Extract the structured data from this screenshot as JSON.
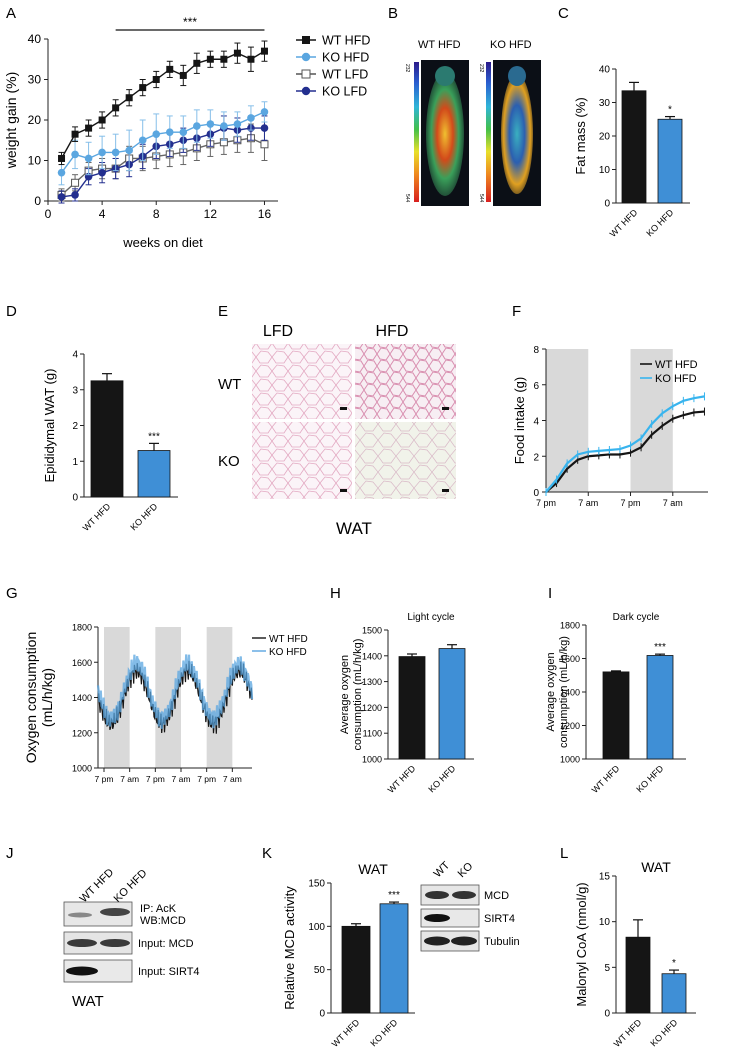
{
  "colors": {
    "black": "#151515",
    "lightblue": "#5aa6e0",
    "navy": "#232f8f",
    "barblue": "#3f8fd6",
    "cyan": "#38b4ee",
    "grey": "#d9d9d9",
    "tissue_pink": "#e7b5cb"
  },
  "panels": {
    "A": "A",
    "B": "B",
    "C": "C",
    "D": "D",
    "E": "E",
    "F": "F",
    "G": "G",
    "H": "H",
    "I": "I",
    "J": "J",
    "K": "K",
    "L": "L"
  },
  "chart_data": [
    {
      "id": "A",
      "type": "line",
      "xlabel": "weeks on diet",
      "ylabel": "weight gain (%)",
      "xticks": [
        0,
        4,
        8,
        12,
        16
      ],
      "yticks": [
        0,
        10,
        20,
        30,
        40
      ],
      "xlim": [
        0,
        17
      ],
      "ylim": [
        0,
        40
      ],
      "significance": "***",
      "x": [
        1,
        2,
        3,
        4,
        5,
        6,
        7,
        8,
        9,
        10,
        11,
        12,
        13,
        14,
        15,
        16
      ],
      "series": [
        {
          "name": "WT HFD",
          "color": "black",
          "marker": "square-filled",
          "values": [
            10.5,
            16.5,
            18,
            20,
            23,
            25.5,
            28,
            30,
            32.5,
            31,
            34,
            35,
            35,
            36.5,
            35,
            37
          ],
          "errors": [
            1.5,
            1.8,
            2,
            2,
            2,
            2,
            2,
            2,
            2,
            2.5,
            2.5,
            2,
            2,
            2.5,
            3,
            2.5
          ]
        },
        {
          "name": "KO HFD",
          "color": "lightblue",
          "marker": "circle-filled",
          "values": [
            7,
            11.5,
            10.5,
            12,
            12,
            12.5,
            15,
            16.5,
            17,
            17,
            18.5,
            19,
            18.5,
            19,
            20.5,
            22
          ],
          "errors": [
            3,
            3.5,
            4,
            4,
            4.5,
            5,
            5,
            5,
            4,
            4,
            4,
            3.5,
            3.5,
            3,
            3,
            2.5
          ]
        },
        {
          "name": "WT LFD",
          "color": "grey-outline",
          "marker": "square-open",
          "values": [
            1.5,
            4.5,
            7.5,
            8,
            8,
            10.5,
            10.5,
            11,
            11.5,
            12,
            13,
            14,
            14.5,
            15,
            15.5,
            14
          ],
          "errors": [
            1.5,
            2,
            2,
            2.5,
            2.5,
            3,
            3,
            3,
            3,
            3,
            3,
            3,
            3,
            3,
            3.5,
            4
          ]
        },
        {
          "name": "KO LFD",
          "color": "navy",
          "marker": "circle-filled",
          "values": [
            1,
            1.5,
            6,
            7,
            8,
            9,
            11,
            13.5,
            14,
            15,
            15.5,
            16.5,
            18,
            17.5,
            18,
            18
          ],
          "errors": [
            1.5,
            1.5,
            2,
            2.5,
            2.5,
            3,
            3,
            3,
            3,
            3,
            3,
            3,
            3,
            3,
            3,
            3
          ]
        }
      ]
    },
    {
      "id": "C",
      "type": "bar",
      "ylabel": "Fat mass (%)",
      "yticks": [
        0,
        10,
        20,
        30,
        40
      ],
      "ylim": [
        0,
        40
      ],
      "categories": [
        "WT HFD",
        "KO HFD"
      ],
      "values": [
        33.5,
        25
      ],
      "errors": [
        2.5,
        0.8
      ],
      "colors": [
        "black",
        "barblue"
      ],
      "significance": [
        "",
        "*"
      ]
    },
    {
      "id": "D",
      "type": "bar",
      "ylabel": "Epididymal WAT (g)",
      "yticks": [
        0,
        1,
        2,
        3,
        4
      ],
      "ylim": [
        0,
        4
      ],
      "categories": [
        "WT HFD",
        "KO HFD"
      ],
      "values": [
        3.25,
        1.3
      ],
      "errors": [
        0.2,
        0.2
      ],
      "colors": [
        "black",
        "barblue"
      ],
      "significance": [
        "",
        "***"
      ]
    },
    {
      "id": "F",
      "type": "line",
      "ylabel": "Food intake (g)",
      "yticks": [
        0,
        2,
        4,
        6,
        8
      ],
      "ylim": [
        0,
        8
      ],
      "xticklabels": [
        "7 pm",
        "7 am",
        "7 pm",
        "7 am"
      ],
      "hours": [
        0,
        12,
        24,
        36
      ],
      "xlim": [
        0,
        46
      ],
      "dark_periods": [
        [
          0,
          12
        ],
        [
          24,
          36
        ]
      ],
      "series": [
        {
          "name": "WT HFD",
          "color": "black",
          "values": [
            0,
            0.5,
            1.3,
            1.8,
            2.0,
            2.05,
            2.1,
            2.1,
            2.2,
            2.5,
            3.2,
            3.7,
            4.1,
            4.3,
            4.45,
            4.5
          ]
        },
        {
          "name": "KO HFD",
          "color": "cyan",
          "values": [
            0,
            0.7,
            1.6,
            2.1,
            2.25,
            2.3,
            2.35,
            2.4,
            2.6,
            3.0,
            3.8,
            4.4,
            4.8,
            5.1,
            5.25,
            5.35
          ]
        }
      ],
      "x": [
        0,
        3,
        6,
        9,
        12,
        15,
        18,
        21,
        24,
        27,
        30,
        33,
        36,
        39,
        42,
        45
      ]
    },
    {
      "id": "G",
      "type": "line",
      "ylabel": "Oxygen consumption (mL/h/kg)",
      "yticks": [
        1000,
        1200,
        1400,
        1600,
        1800
      ],
      "ylim": [
        1000,
        1800
      ],
      "xticklabels": [
        "7 pm",
        "7 am",
        "7 pm",
        "7 am",
        "7 pm",
        "7 am"
      ],
      "hours": [
        0,
        12,
        24,
        36,
        48,
        60
      ],
      "xlim": [
        0,
        72
      ],
      "dark_periods": [
        [
          0,
          12
        ],
        [
          24,
          36
        ],
        [
          48,
          60
        ]
      ],
      "series": [
        {
          "name": "WT HFD",
          "color": "black"
        },
        {
          "name": "KO HFD",
          "color": "lightblue"
        }
      ]
    },
    {
      "id": "H",
      "type": "bar",
      "title": "Light cycle",
      "ylabel": "Average oxygen consumption (mL/h/kg)",
      "yticks": [
        1000,
        1100,
        1200,
        1300,
        1400,
        1500
      ],
      "ylim": [
        1000,
        1500
      ],
      "categories": [
        "WT HFD",
        "KO HFD"
      ],
      "values": [
        1397,
        1428
      ],
      "errors": [
        10,
        15
      ],
      "colors": [
        "black",
        "barblue"
      ],
      "significance": [
        "",
        ""
      ]
    },
    {
      "id": "I",
      "type": "bar",
      "title": "Dark cycle",
      "ylabel": "Average oxygen consumption (mL/h/kg)",
      "yticks": [
        1000,
        1200,
        1400,
        1600,
        1800
      ],
      "ylim": [
        1000,
        1800
      ],
      "categories": [
        "WT HFD",
        "KO HFD"
      ],
      "values": [
        1520,
        1618
      ],
      "errors": [
        6,
        8
      ],
      "colors": [
        "black",
        "barblue"
      ],
      "significance": [
        "",
        "***"
      ]
    },
    {
      "id": "K",
      "type": "bar",
      "title": "WAT",
      "ylabel": "Relative MCD activity",
      "yticks": [
        0,
        50,
        100,
        150
      ],
      "ylim": [
        0,
        150
      ],
      "categories": [
        "WT HFD",
        "KO HFD"
      ],
      "values": [
        100,
        126
      ],
      "errors": [
        3,
        2
      ],
      "colors": [
        "black",
        "barblue"
      ],
      "significance": [
        "",
        "***"
      ]
    },
    {
      "id": "L",
      "type": "bar",
      "title": "WAT",
      "ylabel": "Malonyl CoA (nmol/g)",
      "yticks": [
        0,
        5,
        10,
        15
      ],
      "ylim": [
        0,
        15
      ],
      "categories": [
        "WT HFD",
        "KO HFD"
      ],
      "values": [
        8.3,
        4.3
      ],
      "errors": [
        1.9,
        0.4
      ],
      "colors": [
        "black",
        "barblue"
      ],
      "significance": [
        "",
        "*"
      ]
    }
  ],
  "panel_b": {
    "labels": [
      "WT HFD",
      "KO HFD"
    ],
    "scale_top": "232",
    "scale_bottom": "544"
  },
  "panel_e": {
    "col_labels": [
      "LFD",
      "HFD"
    ],
    "row_labels": [
      "WT",
      "KO"
    ],
    "caption": "WAT"
  },
  "panel_j": {
    "lanes": [
      "WT HFD",
      "KO HFD"
    ],
    "blot_labels": [
      "IP: AcK\nWB:MCD",
      "Input: MCD",
      "Input: SIRT4"
    ],
    "caption": "WAT"
  },
  "panel_k_blot": {
    "lanes": [
      "WT",
      "KO"
    ],
    "blot_labels": [
      "MCD",
      "SIRT4",
      "Tubulin"
    ]
  }
}
